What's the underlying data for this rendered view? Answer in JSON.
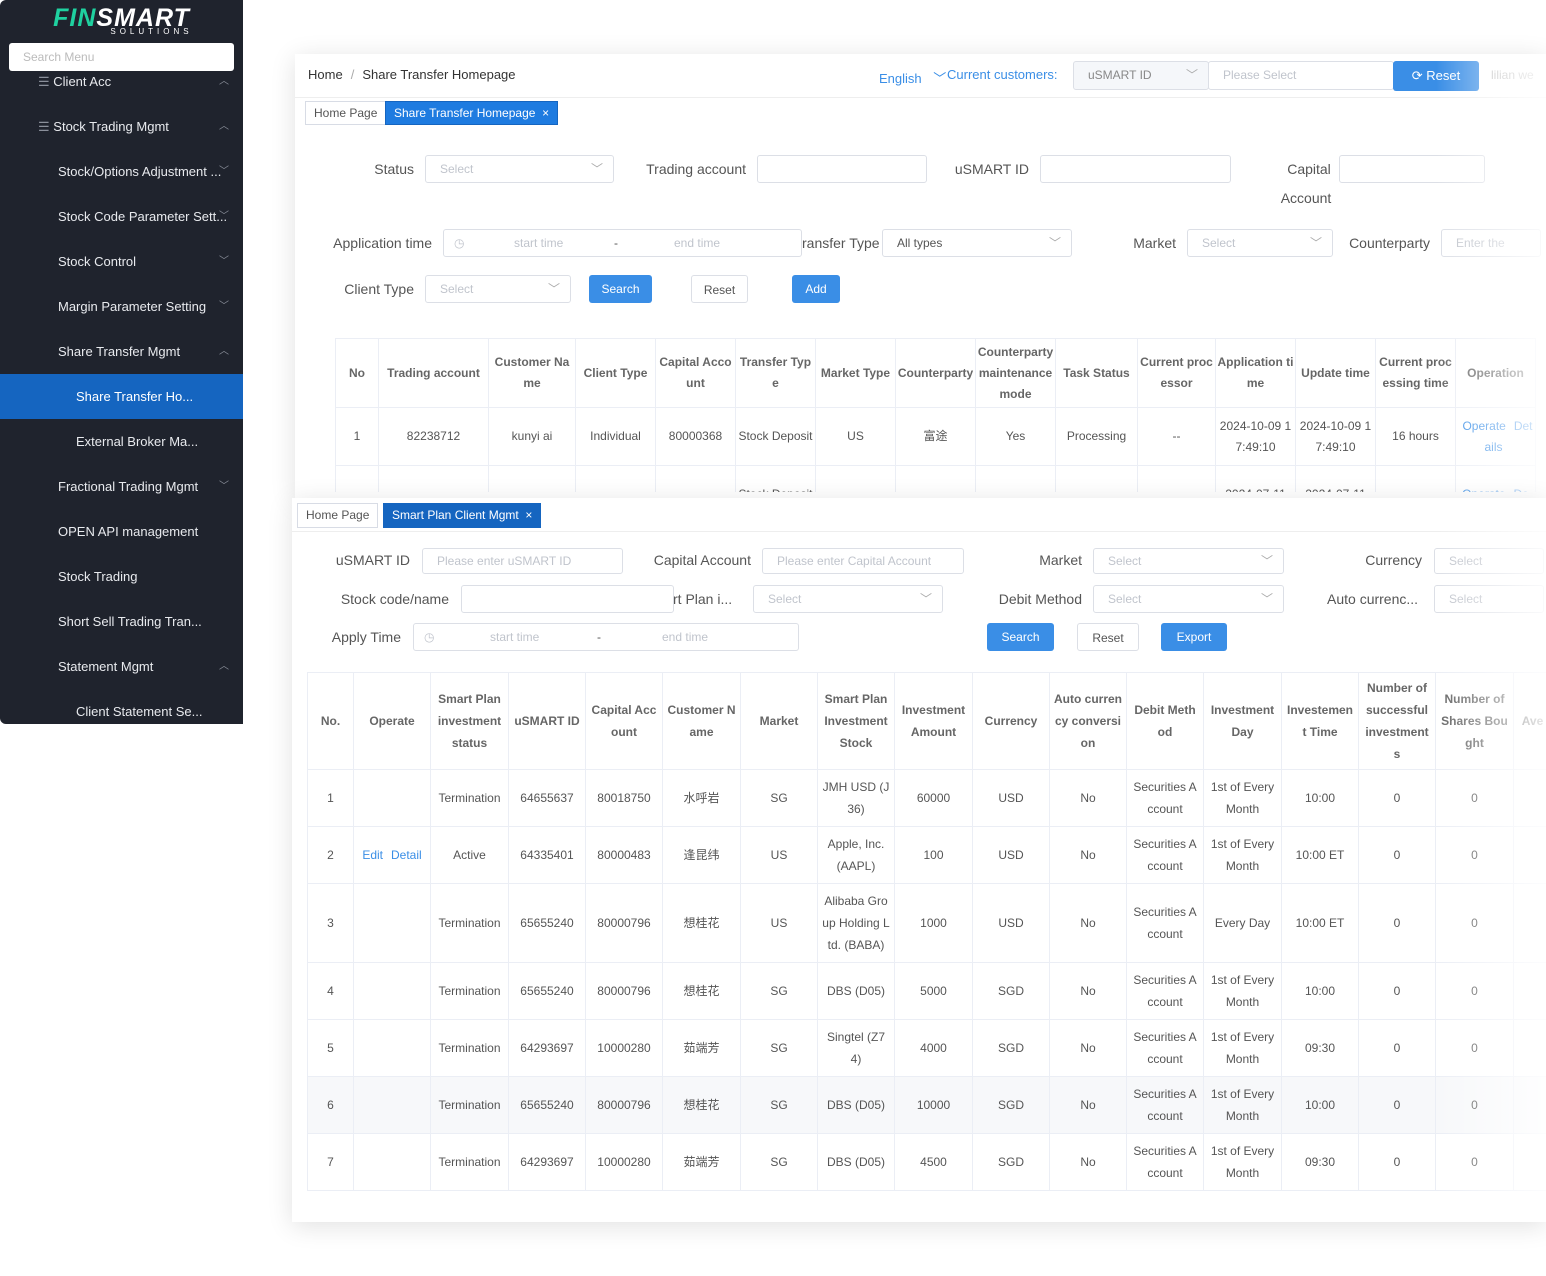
{
  "sidebar": {
    "logo_fin": "FIN",
    "logo_smart": "SMART",
    "logo_sub": "SOLUTIONS",
    "search_placeholder": "Search Menu",
    "menu": [
      "Client Acc",
      "Stock Trading Mgmt",
      "Stock/Options Adjustment ...",
      "Stock Code Parameter Sett...",
      "Stock Control",
      "Margin Parameter Setting",
      "Share Transfer Mgmt",
      "Share Transfer Ho...",
      "External Broker Ma...",
      "Fractional Trading Mgmt",
      "OPEN API management",
      "Stock Trading",
      "Short Sell Trading Tran...",
      "Statement Mgmt",
      "Client Statement Se..."
    ]
  },
  "header": {
    "breadcrumb": [
      "Home",
      "Share Transfer Homepage"
    ],
    "language": "English",
    "customers_label": "Current customers:",
    "id_type": "uSMART ID",
    "customer_placeholder": "Please Select",
    "reset": "Reset",
    "user": "lilian we"
  },
  "share_transfer": {
    "tabs": [
      "Home Page",
      "Share Transfer Homepage"
    ],
    "filters": {
      "status": "Status",
      "status_ph": "Select",
      "trading_account": "Trading account",
      "usmart_id": "uSMART ID",
      "capital": "Capital",
      "account": "Account",
      "application_time": "Application time",
      "start_time": "start time",
      "range_sep": "-",
      "end_time": "end time",
      "transfer_type": "ransfer Type",
      "transfer_type_value": "All types",
      "market": "Market",
      "market_ph": "Select",
      "counterparty": "Counterparty",
      "counterparty_ph": "Enter the",
      "client_type": "Client Type",
      "client_type_ph": "Select"
    },
    "buttons": [
      "Search",
      "Reset",
      "Add"
    ],
    "table": {
      "headers": [
        "No",
        "Trading account",
        "Customer Name",
        "Client Type",
        "Capital Account",
        "Transfer Type",
        "Market Type",
        "Counterparty",
        "Counterparty maintenance mode",
        "Task Status",
        "Current processor",
        "Application time",
        "Update time",
        "Current processing time",
        "Operation"
      ],
      "rows": [
        [
          "1",
          "82238712",
          "kunyi ai",
          "Individual",
          "80000368",
          "Stock Deposit",
          "US",
          "富途",
          "Yes",
          "Processing",
          "--",
          "2024-10-09 17:49:10",
          "2024-10-09 17:49:10",
          "16 hours",
          [
            "Operate",
            "Details"
          ]
        ],
        [
          null,
          null,
          null,
          null,
          null,
          "Stock Deposit",
          null,
          null,
          null,
          null,
          null,
          "2024-07-11",
          "2024-07-11",
          null,
          [
            "Operate",
            "De"
          ]
        ]
      ]
    }
  },
  "smart_plan": {
    "tabs": [
      "Home Page",
      "Smart Plan Client Mgmt"
    ],
    "filters": {
      "usmart_id": "uSMART ID",
      "usmart_id_ph": "Please enter uSMART ID",
      "capital_account": "Capital Account",
      "capital_account_ph": "Please enter Capital Account",
      "market": "Market",
      "market_ph": "Select",
      "currency": "Currency",
      "currency_ph": "Select",
      "stock": "Stock code/name",
      "plan": "rt Plan i...",
      "plan_ph": "Select",
      "debit_method": "Debit Method",
      "debit_ph": "Select",
      "auto": "Auto currenc...",
      "auto_ph": "Select",
      "apply_time": "Apply Time",
      "start_time": "start time",
      "range_sep": "-",
      "end_time": "end time"
    },
    "buttons": [
      "Search",
      "Reset",
      "Export"
    ],
    "table": {
      "headers": [
        "No.",
        "Operate",
        "Smart Plan investment status",
        "uSMART ID",
        "Capital Account",
        "Customer Name",
        "Market",
        "Smart Plan Investment Stock",
        "Investment Amount",
        "Currency",
        "Auto currency conversion",
        "Debit Method",
        "Investment Day",
        "Investement Time",
        "Number of successful investments",
        "Number of Shares Bought",
        "Ave urc"
      ],
      "rows": [
        [
          "1",
          null,
          "Termination",
          "64655637",
          "80018750",
          "水呼岩",
          "SG",
          "JMH USD (J36)",
          "60000",
          "USD",
          "No",
          "Securities Account",
          "1st of Every Month",
          "10:00",
          "0",
          "0",
          null
        ],
        [
          "2",
          [
            "Edit",
            "Detail"
          ],
          "Active",
          "64335401",
          "80000483",
          "逢昆纬",
          "US",
          "Apple, Inc. (AAPL)",
          "100",
          "USD",
          "No",
          "Securities Account",
          "1st of Every Month",
          "10:00 ET",
          "0",
          "0",
          null
        ],
        [
          "3",
          null,
          "Termination",
          "65655240",
          "80000796",
          "想桂花",
          "US",
          "Alibaba Group Holding Ltd. (BABA)",
          "1000",
          "USD",
          "No",
          "Securities Account",
          "Every Day",
          "10:00 ET",
          "0",
          "0",
          null
        ],
        [
          "4",
          null,
          "Termination",
          "65655240",
          "80000796",
          "想桂花",
          "SG",
          "DBS (D05)",
          "5000",
          "SGD",
          "No",
          "Securities Account",
          "1st of Every Month",
          "10:00",
          "0",
          "0",
          null
        ],
        [
          "5",
          null,
          "Termination",
          "64293697",
          "10000280",
          "茹端芳",
          "SG",
          "Singtel (Z74)",
          "4000",
          "SGD",
          "No",
          "Securities Account",
          "1st of Every Month",
          "09:30",
          "0",
          "0",
          null
        ],
        [
          "6",
          null,
          "Termination",
          "65655240",
          "80000796",
          "想桂花",
          "SG",
          "DBS (D05)",
          "10000",
          "SGD",
          "No",
          "Securities Account",
          "1st of Every Month",
          "10:00",
          "0",
          "0",
          null
        ],
        [
          "7",
          null,
          "Termination",
          "64293697",
          "10000280",
          "茹端芳",
          "SG",
          "DBS (D05)",
          "4500",
          "SGD",
          "No",
          "Securities Account",
          "1st of Every Month",
          "09:30",
          "0",
          "0",
          null
        ]
      ]
    }
  }
}
